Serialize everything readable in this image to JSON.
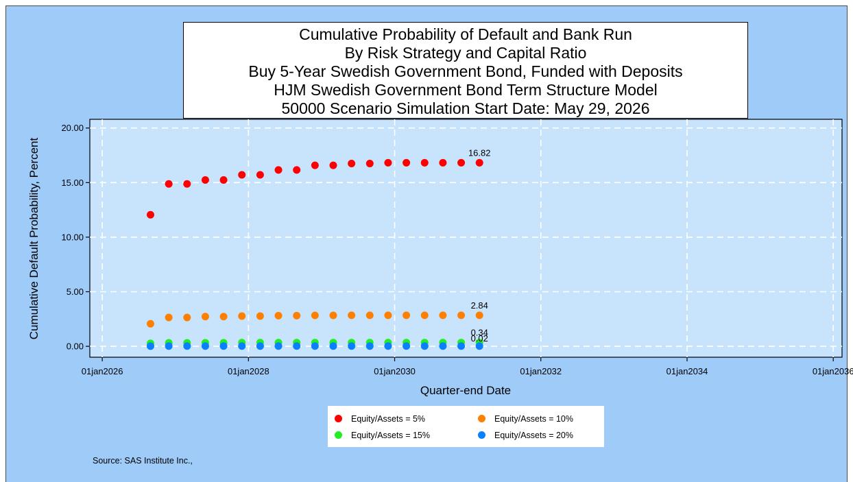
{
  "chart_data": {
    "type": "scatter",
    "title_lines": [
      "Cumulative Probability of Default and Bank Run",
      "By Risk Strategy and Capital Ratio",
      "Buy 5-Year Swedish Government Bond, Funded with Deposits",
      "HJM Swedish Government Bond Term Structure Model",
      "50000 Scenario Simulation Start Date: May 29, 2026"
    ],
    "xlabel": "Quarter-end Date",
    "ylabel": "Cumulative Default Probability, Percent",
    "x_ticks": [
      "01jan2026",
      "01jan2028",
      "01jan2030",
      "01jan2032",
      "01jan2034",
      "01jan2036"
    ],
    "x_tick_years": [
      2026,
      2028,
      2030,
      2032,
      2034,
      2036
    ],
    "xlim": [
      2025.83,
      2036.12
    ],
    "y_ticks": [
      "0.00",
      "5.00",
      "10.00",
      "15.00",
      "20.00"
    ],
    "ylim": [
      -1.0,
      20.8
    ],
    "grid": true,
    "legend_position": "bottom",
    "x": [
      2026.66,
      2026.91,
      2027.16,
      2027.41,
      2027.66,
      2027.91,
      2028.16,
      2028.41,
      2028.66,
      2028.91,
      2029.16,
      2029.41,
      2029.66,
      2029.91,
      2030.16,
      2030.41,
      2030.66,
      2030.91,
      2031.16
    ],
    "series": [
      {
        "name": "Equity/Assets = 5%",
        "color": "#ff0000",
        "values": [
          12.05,
          14.88,
          14.88,
          15.24,
          15.24,
          15.71,
          15.71,
          16.16,
          16.16,
          16.58,
          16.58,
          16.75,
          16.75,
          16.82,
          16.82,
          16.82,
          16.82,
          16.82,
          16.82
        ],
        "end_label": "16.82"
      },
      {
        "name": "Equity/Assets = 10%",
        "color": "#ff8000",
        "values": [
          2.06,
          2.64,
          2.64,
          2.72,
          2.72,
          2.77,
          2.77,
          2.81,
          2.81,
          2.83,
          2.83,
          2.84,
          2.84,
          2.84,
          2.84,
          2.84,
          2.84,
          2.84,
          2.84
        ],
        "end_label": "2.84"
      },
      {
        "name": "Equity/Assets = 15%",
        "color": "#22ee22",
        "values": [
          0.27,
          0.32,
          0.32,
          0.33,
          0.33,
          0.34,
          0.34,
          0.34,
          0.34,
          0.34,
          0.34,
          0.34,
          0.34,
          0.34,
          0.34,
          0.34,
          0.34,
          0.34,
          0.34
        ],
        "end_label": "0.34"
      },
      {
        "name": "Equity/Assets = 20%",
        "color": "#0a80ff",
        "values": [
          0.01,
          0.02,
          0.02,
          0.02,
          0.02,
          0.02,
          0.02,
          0.02,
          0.02,
          0.02,
          0.02,
          0.02,
          0.02,
          0.02,
          0.02,
          0.02,
          0.02,
          0.02,
          0.02
        ],
        "end_label": "0.02"
      }
    ]
  },
  "source": "Source: SAS Institute Inc.,"
}
